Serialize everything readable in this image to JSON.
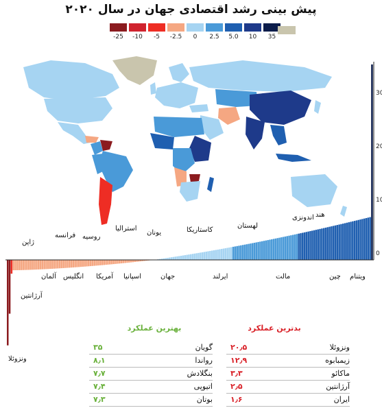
{
  "title": "پیش بینی رشد اقتصادی جهان در سال ۲۰۲۰",
  "legend": {
    "stops": [
      "-25",
      "-10",
      "-5",
      "-2.5",
      "0",
      "2.5",
      "5.0",
      "10",
      "35"
    ],
    "colors": [
      "#8b1b1f",
      "#d0232e",
      "#ee2d24",
      "#f5a782",
      "#a6d4f2",
      "#4a9ad8",
      "#1f5fb0",
      "#1e3a8a",
      "#0b1c4a"
    ],
    "nodata_color": "#c9c5ad"
  },
  "chart_data": {
    "type": "bar",
    "y_ticks": [
      "0",
      "10",
      "20",
      "30"
    ],
    "ylim": [
      -20.5,
      35
    ],
    "annotated_countries": [
      {
        "name": "ونزوئلا",
        "value": -20.5
      },
      {
        "name": "آرژانتین",
        "value": -2.5
      },
      {
        "name": "ژاپن",
        "value": 0.5
      },
      {
        "name": "آلمان",
        "value": 1.2
      },
      {
        "name": "فرانسه",
        "value": 1.3
      },
      {
        "name": "انگلیس",
        "value": 1.4
      },
      {
        "name": "روسیه",
        "value": 1.9
      },
      {
        "name": "آمریکا",
        "value": 2.1
      },
      {
        "name": "استرالیا",
        "value": 2.3
      },
      {
        "name": "اسپانیا",
        "value": 1.6
      },
      {
        "name": "یونان",
        "value": 2.3
      },
      {
        "name": "جهان",
        "value": 3.4
      },
      {
        "name": "کاستاریکا",
        "value": 3.0
      },
      {
        "name": "ایرلند",
        "value": 3.5
      },
      {
        "name": "لهستان",
        "value": 3.5
      },
      {
        "name": "مالت",
        "value": 4.3
      },
      {
        "name": "اندونزی",
        "value": 5.1
      },
      {
        "name": "چین",
        "value": 5.8
      },
      {
        "name": "هند",
        "value": 7.0
      },
      {
        "name": "ویتنام",
        "value": 6.5
      }
    ]
  },
  "best": {
    "header": "بهترین عملکرد",
    "color": "#6ab13c",
    "rows": [
      {
        "name": "گویان",
        "value": "۳۵"
      },
      {
        "name": "رواندا",
        "value": "۸٫۱"
      },
      {
        "name": "بنگلادش",
        "value": "۷٫۷"
      },
      {
        "name": "اتیوپی",
        "value": "۷٫۴"
      },
      {
        "name": "بوتان",
        "value": "۷٫۳"
      }
    ]
  },
  "worst": {
    "header": "بدترین عملکرد",
    "color": "#d92027",
    "rows": [
      {
        "name": "ونزوئلا",
        "value": "۲۰٫۵"
      },
      {
        "name": "زیمبابوه",
        "value": "۱۲٫۹"
      },
      {
        "name": "ماکائو",
        "value": "۳٫۳"
      },
      {
        "name": "آرژانتین",
        "value": "۲٫۵"
      },
      {
        "name": "ایران",
        "value": "۱٫۶"
      }
    ]
  }
}
